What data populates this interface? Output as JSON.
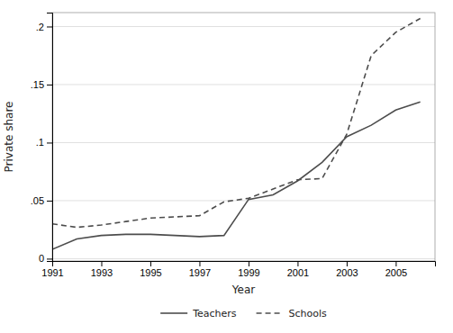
{
  "chart_data": {
    "type": "line",
    "xlabel": "Year",
    "ylabel": "Private share",
    "x": [
      1991,
      1992,
      1993,
      1994,
      1995,
      1996,
      1997,
      1998,
      1999,
      2000,
      2001,
      2002,
      2003,
      2004,
      2005,
      2006
    ],
    "series": [
      {
        "name": "Teachers",
        "color": "#4d4d4d",
        "line_style": "solid",
        "values": [
          0.008,
          0.017,
          0.02,
          0.021,
          0.021,
          0.02,
          0.019,
          0.02,
          0.051,
          0.055,
          0.067,
          0.083,
          0.105,
          0.115,
          0.128,
          0.135
        ]
      },
      {
        "name": "Schools",
        "color": "#4d4d4d",
        "line_style": "dashed",
        "values": [
          0.03,
          0.027,
          0.029,
          0.032,
          0.035,
          0.036,
          0.037,
          0.049,
          0.052,
          0.06,
          0.068,
          0.069,
          0.107,
          0.175,
          0.195,
          0.207
        ]
      }
    ],
    "xlim": [
      1991,
      2006.6
    ],
    "ylim": [
      -0.002,
      0.212
    ],
    "xticks": [
      1991,
      1993,
      1995,
      1997,
      1999,
      2001,
      2003,
      2005
    ],
    "yticks": [
      0,
      {
        "value": 0.05,
        "label": ".05"
      },
      {
        "value": 0.1,
        "label": ".1"
      },
      {
        "value": 0.15,
        "label": ".15"
      },
      {
        "value": 0.2,
        "label": ".2"
      }
    ],
    "grid": "y",
    "legend": "bottom"
  }
}
